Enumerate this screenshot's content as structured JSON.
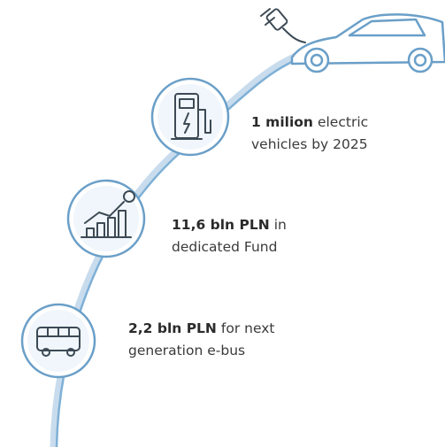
{
  "items": [
    {
      "bold": "1 milion",
      "text": "electric",
      "line2": "vehicles by 2025"
    },
    {
      "bold": "11,6 bln PLN",
      "text": "in",
      "line2": "dedicated Fund"
    },
    {
      "bold": "2,2 bln PLN",
      "text": "for next",
      "line2": "generation e-bus"
    }
  ]
}
